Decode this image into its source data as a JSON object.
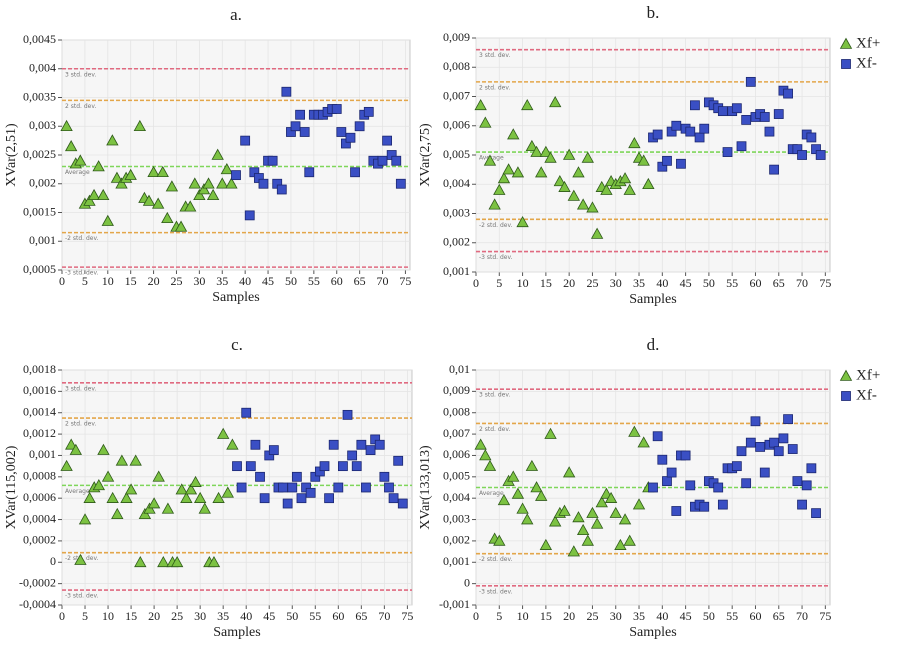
{
  "chart_data": [
    {
      "type": "scatter",
      "title": "a.",
      "x_label": "Samples",
      "y_label": "XVar(2,51)",
      "grid": true,
      "legend": false,
      "xlim": [
        0,
        76
      ],
      "xticks": [
        0,
        5,
        10,
        15,
        20,
        25,
        30,
        35,
        40,
        45,
        50,
        55,
        60,
        65,
        70,
        75
      ],
      "ylim": [
        0.0005,
        0.0045
      ],
      "yticks": [
        {
          "value": 0.0005,
          "label": "0,0005"
        },
        {
          "value": 0.001,
          "label": "0,001"
        },
        {
          "value": 0.0015,
          "label": "0,0015"
        },
        {
          "value": 0.002,
          "label": "0,002"
        },
        {
          "value": 0.0025,
          "label": "0,0025"
        },
        {
          "value": 0.003,
          "label": "0,003"
        },
        {
          "value": 0.0035,
          "label": "0,0035"
        },
        {
          "value": 0.004,
          "label": "0,004"
        },
        {
          "value": 0.0045,
          "label": "0,0045"
        }
      ],
      "reference_lines": [
        {
          "label": "3 std. dev.",
          "value": 0.004,
          "color": "#e06a80"
        },
        {
          "label": "2 std. dev.",
          "value": 0.00345,
          "color": "#e3a64a"
        },
        {
          "label": "Average",
          "value": 0.0023,
          "color": "#7fd65a"
        },
        {
          "label": "-2 std. dev.",
          "value": 0.00115,
          "color": "#e3a64a"
        },
        {
          "label": "-3 std. dev.",
          "value": 0.00055,
          "color": "#e06a80"
        }
      ],
      "series": [
        {
          "marker": "triangle",
          "color": "#7cc242",
          "x": [
            1,
            2,
            3,
            4,
            5,
            6,
            7,
            8,
            9,
            10,
            11,
            12,
            13,
            14,
            15,
            17,
            18,
            19,
            20,
            21,
            22,
            23,
            24,
            25,
            26,
            27,
            28,
            29,
            30,
            31,
            32,
            33,
            34,
            35,
            36,
            37
          ],
          "values": [
            0.003,
            0.00265,
            0.00235,
            0.0024,
            0.00165,
            0.0017,
            0.0018,
            0.0023,
            0.0018,
            0.00135,
            0.00275,
            0.0021,
            0.002,
            0.0021,
            0.00215,
            0.003,
            0.00175,
            0.0017,
            0.0022,
            0.00165,
            0.0022,
            0.0014,
            0.00195,
            0.00125,
            0.00125,
            0.0016,
            0.0016,
            0.002,
            0.0018,
            0.0019,
            0.002,
            0.0018,
            0.0025,
            0.002,
            0.00225,
            0.002
          ]
        },
        {
          "marker": "square",
          "color": "#3a4fc4",
          "x": [
            38,
            40,
            41,
            42,
            43,
            44,
            45,
            46,
            47,
            48,
            49,
            50,
            51,
            52,
            53,
            54,
            55,
            56,
            57,
            58,
            59,
            60,
            61,
            62,
            63,
            64,
            65,
            66,
            67,
            68,
            69,
            70,
            71,
            72,
            73,
            74
          ],
          "values": [
            0.00215,
            0.00275,
            0.00145,
            0.0022,
            0.0021,
            0.002,
            0.0024,
            0.0024,
            0.002,
            0.0019,
            0.0036,
            0.0029,
            0.003,
            0.0032,
            0.0029,
            0.0022,
            0.0032,
            0.0032,
            0.0032,
            0.00325,
            0.0033,
            0.0033,
            0.0029,
            0.0027,
            0.0028,
            0.0022,
            0.003,
            0.0032,
            0.00325,
            0.0024,
            0.00235,
            0.0024,
            0.00275,
            0.0025,
            0.0024,
            0.002
          ]
        }
      ]
    },
    {
      "type": "scatter",
      "title": "b.",
      "x_label": "Samples",
      "y_label": "XVar(2,75)",
      "grid": true,
      "legend": true,
      "xlim": [
        0,
        76
      ],
      "xticks": [
        0,
        5,
        10,
        15,
        20,
        25,
        30,
        35,
        40,
        45,
        50,
        55,
        60,
        65,
        70,
        75
      ],
      "ylim": [
        0.001,
        0.009
      ],
      "yticks": [
        {
          "value": 0.001,
          "label": "0,001"
        },
        {
          "value": 0.002,
          "label": "0,002"
        },
        {
          "value": 0.003,
          "label": "0,003"
        },
        {
          "value": 0.004,
          "label": "0,004"
        },
        {
          "value": 0.005,
          "label": "0,005"
        },
        {
          "value": 0.006,
          "label": "0,006"
        },
        {
          "value": 0.007,
          "label": "0,007"
        },
        {
          "value": 0.008,
          "label": "0,008"
        },
        {
          "value": 0.009,
          "label": "0,009"
        }
      ],
      "reference_lines": [
        {
          "label": "3 std. dev.",
          "value": 0.0086,
          "color": "#e06a80"
        },
        {
          "label": "2 std. dev.",
          "value": 0.0075,
          "color": "#e3a64a"
        },
        {
          "label": "Average",
          "value": 0.0051,
          "color": "#7fd65a"
        },
        {
          "label": "-2 std. dev.",
          "value": 0.0028,
          "color": "#e3a64a"
        },
        {
          "label": "-3 std. dev.",
          "value": 0.0017,
          "color": "#e06a80"
        }
      ],
      "series": [
        {
          "name": "Xf+",
          "marker": "triangle",
          "color": "#7cc242",
          "x": [
            1,
            2,
            3,
            4,
            5,
            6,
            7,
            8,
            9,
            10,
            11,
            12,
            13,
            14,
            15,
            16,
            17,
            18,
            19,
            20,
            21,
            22,
            23,
            24,
            25,
            26,
            27,
            28,
            29,
            30,
            31,
            32,
            33,
            34,
            35,
            36,
            37
          ],
          "values": [
            0.0067,
            0.0061,
            0.0048,
            0.0033,
            0.0038,
            0.0042,
            0.0045,
            0.0057,
            0.0044,
            0.0027,
            0.0067,
            0.0053,
            0.0051,
            0.0044,
            0.0051,
            0.0049,
            0.0068,
            0.0041,
            0.0039,
            0.005,
            0.0036,
            0.0044,
            0.0033,
            0.0049,
            0.0032,
            0.0023,
            0.0039,
            0.0038,
            0.0041,
            0.004,
            0.0041,
            0.0042,
            0.0038,
            0.0054,
            0.0049,
            0.0048,
            0.004
          ]
        },
        {
          "name": "Xf-",
          "marker": "square",
          "color": "#3a4fc4",
          "x": [
            38,
            39,
            40,
            41,
            42,
            43,
            44,
            45,
            46,
            47,
            48,
            49,
            50,
            51,
            52,
            53,
            54,
            55,
            56,
            57,
            58,
            59,
            60,
            61,
            62,
            63,
            64,
            65,
            66,
            67,
            68,
            69,
            70,
            71,
            72,
            73,
            74
          ],
          "values": [
            0.0056,
            0.0057,
            0.0046,
            0.0048,
            0.0058,
            0.006,
            0.0047,
            0.0059,
            0.0058,
            0.0067,
            0.0056,
            0.0059,
            0.0068,
            0.0067,
            0.0066,
            0.0065,
            0.0051,
            0.0065,
            0.0066,
            0.0053,
            0.0062,
            0.0075,
            0.0063,
            0.0064,
            0.0063,
            0.0058,
            0.0045,
            0.0064,
            0.0072,
            0.0071,
            0.0052,
            0.0052,
            0.005,
            0.0057,
            0.0056,
            0.0052,
            0.005
          ]
        }
      ]
    },
    {
      "type": "scatter",
      "title": "c.",
      "x_label": "Samples",
      "y_label": "XVar(115,002)",
      "grid": true,
      "legend": false,
      "xlim": [
        0,
        76
      ],
      "xticks": [
        0,
        5,
        10,
        15,
        20,
        25,
        30,
        35,
        40,
        45,
        50,
        55,
        60,
        65,
        70,
        75
      ],
      "ylim": [
        -0.0004,
        0.0018
      ],
      "yticks": [
        {
          "value": -0.0004,
          "label": "-0,0004"
        },
        {
          "value": -0.0002,
          "label": "-0,0002"
        },
        0,
        {
          "value": 0.0002,
          "label": "0,0002"
        },
        {
          "value": 0.0004,
          "label": "0,0004"
        },
        {
          "value": 0.0006,
          "label": "0,0006"
        },
        {
          "value": 0.0008,
          "label": "0,0008"
        },
        {
          "value": 0.001,
          "label": "0,001"
        },
        {
          "value": 0.0012,
          "label": "0,0012"
        },
        {
          "value": 0.0014,
          "label": "0,0014"
        },
        {
          "value": 0.0016,
          "label": "0,0016"
        },
        {
          "value": 0.0018,
          "label": "0,0018"
        }
      ],
      "reference_lines": [
        {
          "label": "3 std. dev.",
          "value": 0.00168,
          "color": "#e06a80"
        },
        {
          "label": "2 std. dev.",
          "value": 0.00135,
          "color": "#e3a64a"
        },
        {
          "label": "Average",
          "value": 0.00072,
          "color": "#7fd65a"
        },
        {
          "label": "-2 std. dev.",
          "value": 9e-05,
          "color": "#e3a64a"
        },
        {
          "label": "-3 std. dev.",
          "value": -0.00026,
          "color": "#e06a80"
        }
      ],
      "series": [
        {
          "marker": "triangle",
          "color": "#7cc242",
          "x": [
            1,
            2,
            3,
            4,
            5,
            6,
            7,
            8,
            9,
            10,
            11,
            12,
            13,
            14,
            15,
            16,
            17,
            18,
            19,
            20,
            21,
            22,
            23,
            24,
            25,
            26,
            27,
            28,
            29,
            30,
            31,
            32,
            33,
            34,
            35,
            36,
            37
          ],
          "values": [
            0.0009,
            0.0011,
            0.00105,
            2e-05,
            0.0004,
            0.0006,
            0.0007,
            0.00072,
            0.00105,
            0.0008,
            0.0006,
            0.00045,
            0.00095,
            0.0006,
            0.00068,
            0.00095,
            0,
            0.00045,
            0.0005,
            0.00055,
            0.0008,
            0,
            0.0005,
            0,
            0,
            0.00068,
            0.0006,
            0.00068,
            0.00075,
            0.0006,
            0.0005,
            0,
            0,
            0.0006,
            0.0012,
            0.00065,
            0.0011
          ]
        },
        {
          "marker": "square",
          "color": "#3a4fc4",
          "x": [
            38,
            39,
            40,
            41,
            42,
            43,
            44,
            45,
            46,
            47,
            48,
            49,
            50,
            51,
            52,
            53,
            54,
            55,
            56,
            57,
            58,
            59,
            60,
            61,
            62,
            63,
            64,
            65,
            66,
            67,
            68,
            69,
            70,
            71,
            72,
            73,
            74
          ],
          "values": [
            0.0009,
            0.0007,
            0.0014,
            0.0009,
            0.0011,
            0.0008,
            0.0006,
            0.001,
            0.00105,
            0.0007,
            0.0007,
            0.00055,
            0.0007,
            0.0008,
            0.0006,
            0.0007,
            0.00065,
            0.0008,
            0.00085,
            0.0009,
            0.0006,
            0.0011,
            0.0007,
            0.0009,
            0.00138,
            0.001,
            0.0009,
            0.0011,
            0.0007,
            0.00105,
            0.00115,
            0.0011,
            0.0008,
            0.0007,
            0.0006,
            0.00095,
            0.00055
          ]
        }
      ]
    },
    {
      "type": "scatter",
      "title": "d.",
      "x_label": "Samples",
      "y_label": "XVar(133,013)",
      "grid": true,
      "legend": true,
      "xlim": [
        0,
        76
      ],
      "xticks": [
        0,
        5,
        10,
        15,
        20,
        25,
        30,
        35,
        40,
        45,
        50,
        55,
        60,
        65,
        70,
        75
      ],
      "ylim": [
        -0.001,
        0.01
      ],
      "yticks": [
        {
          "value": -0.001,
          "label": "-0,001"
        },
        0,
        {
          "value": 0.001,
          "label": "0,001"
        },
        {
          "value": 0.002,
          "label": "0,002"
        },
        {
          "value": 0.003,
          "label": "0,003"
        },
        {
          "value": 0.004,
          "label": "0,004"
        },
        {
          "value": 0.005,
          "label": "0,005"
        },
        {
          "value": 0.006,
          "label": "0,006"
        },
        {
          "value": 0.007,
          "label": "0,007"
        },
        {
          "value": 0.008,
          "label": "0,008"
        },
        {
          "value": 0.009,
          "label": "0,009"
        },
        {
          "value": 0.01,
          "label": "0,01"
        }
      ],
      "reference_lines": [
        {
          "label": "3 std. dev.",
          "value": 0.0091,
          "color": "#e06a80"
        },
        {
          "label": "2 std. dev.",
          "value": 0.0075,
          "color": "#e3a64a"
        },
        {
          "label": "Average",
          "value": 0.0045,
          "color": "#7fd65a"
        },
        {
          "label": "-2 std. dev.",
          "value": 0.0014,
          "color": "#e3a64a"
        },
        {
          "label": "-3 std. dev.",
          "value": -0.0001,
          "color": "#e06a80"
        }
      ],
      "series": [
        {
          "name": "Xf+",
          "marker": "triangle",
          "color": "#7cc242",
          "x": [
            1,
            2,
            3,
            4,
            5,
            6,
            7,
            8,
            9,
            10,
            11,
            12,
            13,
            14,
            15,
            16,
            17,
            18,
            19,
            20,
            21,
            22,
            23,
            24,
            25,
            26,
            27,
            28,
            29,
            30,
            31,
            32,
            33,
            34,
            35,
            36,
            37
          ],
          "values": [
            0.0065,
            0.006,
            0.0055,
            0.0021,
            0.002,
            0.0039,
            0.0048,
            0.005,
            0.0042,
            0.0035,
            0.003,
            0.0055,
            0.0045,
            0.0041,
            0.0018,
            0.007,
            0.0029,
            0.0033,
            0.0034,
            0.0052,
            0.0015,
            0.0031,
            0.0025,
            0.002,
            0.0033,
            0.0028,
            0.0038,
            0.0042,
            0.004,
            0.0033,
            0.0018,
            0.003,
            0.002,
            0.0071,
            0.0037,
            0.0066,
            0.0045
          ]
        },
        {
          "name": "Xf-",
          "marker": "square",
          "color": "#3a4fc4",
          "x": [
            38,
            39,
            40,
            41,
            42,
            43,
            44,
            45,
            46,
            47,
            48,
            49,
            50,
            51,
            52,
            53,
            54,
            55,
            56,
            57,
            58,
            59,
            60,
            61,
            62,
            63,
            64,
            65,
            66,
            67,
            68,
            69,
            70,
            71,
            72,
            73
          ],
          "values": [
            0.0045,
            0.0069,
            0.0058,
            0.0048,
            0.0052,
            0.0034,
            0.006,
            0.006,
            0.0046,
            0.0036,
            0.0037,
            0.0036,
            0.0048,
            0.0047,
            0.0045,
            0.0037,
            0.0054,
            0.0054,
            0.0055,
            0.0062,
            0.0047,
            0.0066,
            0.0076,
            0.0064,
            0.0052,
            0.0065,
            0.0066,
            0.0062,
            0.0068,
            0.0077,
            0.0063,
            0.0048,
            0.0037,
            0.0046,
            0.0054,
            0.0033
          ]
        }
      ]
    }
  ]
}
